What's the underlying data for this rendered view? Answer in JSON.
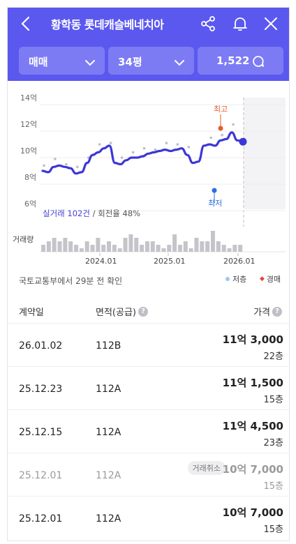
{
  "header": {
    "title": "황학동 롯데캐슬베네치아",
    "back_icon": "chevron-left-icon",
    "share_icon": "share-icon",
    "bell_icon": "bell-icon",
    "close_icon": "close-icon"
  },
  "filters": {
    "trade_type": "매매",
    "size": "34평",
    "comment_count": "1,522"
  },
  "chart_data": {
    "type": "line",
    "y_ticks": [
      "14억",
      "12억",
      "10억",
      "8억",
      "6억"
    ],
    "ylim": [
      6,
      14
    ],
    "x_ticks": [
      "2024.01",
      "2025.01",
      "2026.01"
    ],
    "volume_label": "거래량",
    "high_label": "최고",
    "low_label": "최저",
    "high_value": 12.2,
    "low_value": 7.0,
    "series": [
      {
        "values": [
          9.0,
          8.9,
          9.3,
          9.4,
          9.3,
          9.2,
          8.8,
          8.9,
          9.6,
          10.2,
          10.4,
          10.7,
          10.9,
          9.6,
          9.5,
          9.8,
          10.0,
          10.0,
          10.1,
          10.3,
          10.4,
          10.5,
          10.6,
          10.5,
          10.6,
          10.7,
          10.2,
          9.6,
          9.7,
          10.9,
          11.0,
          10.9,
          11.3,
          11.4,
          11.9,
          11.3,
          11.2
        ]
      }
    ],
    "volume": [
      2,
      3,
      4,
      3,
      4,
      3,
      2,
      1,
      3,
      2,
      4,
      2,
      3,
      2,
      1,
      4,
      5,
      4,
      2,
      3,
      3,
      2,
      1,
      2,
      5,
      2,
      3,
      1,
      4,
      3,
      3,
      6,
      3,
      2,
      1,
      2,
      2
    ]
  },
  "chart_footer": {
    "real_trade": "실거래 102건",
    "turnover": " / 회전율 48%"
  },
  "info": {
    "confirm_text": "국토교통부에서 29분 전 확인",
    "legend_low": "저층",
    "legend_auction": "경매"
  },
  "table": {
    "headers": {
      "date": "계약일",
      "area": "면적(공급)",
      "price": "가격"
    },
    "rows": [
      {
        "date": "26.01.02",
        "area": "112B",
        "price": "11억 3,000",
        "floor": "22층"
      },
      {
        "date": "25.12.23",
        "area": "112A",
        "price": "11억 1,500",
        "floor": "15층"
      },
      {
        "date": "25.12.15",
        "area": "112A",
        "price": "11억 4,500",
        "floor": "23층"
      },
      {
        "date": "25.12.01",
        "area": "112A",
        "price": "10억 7,000",
        "floor": "15층",
        "badge": "거래취소"
      },
      {
        "date": "25.12.01",
        "area": "112A",
        "price": "10억 7,000",
        "floor": "15층"
      }
    ]
  },
  "colors": {
    "brand": "#5b58ef",
    "line": "#3b37d6",
    "high": "#ea5a2c",
    "low": "#2a6fe0"
  }
}
